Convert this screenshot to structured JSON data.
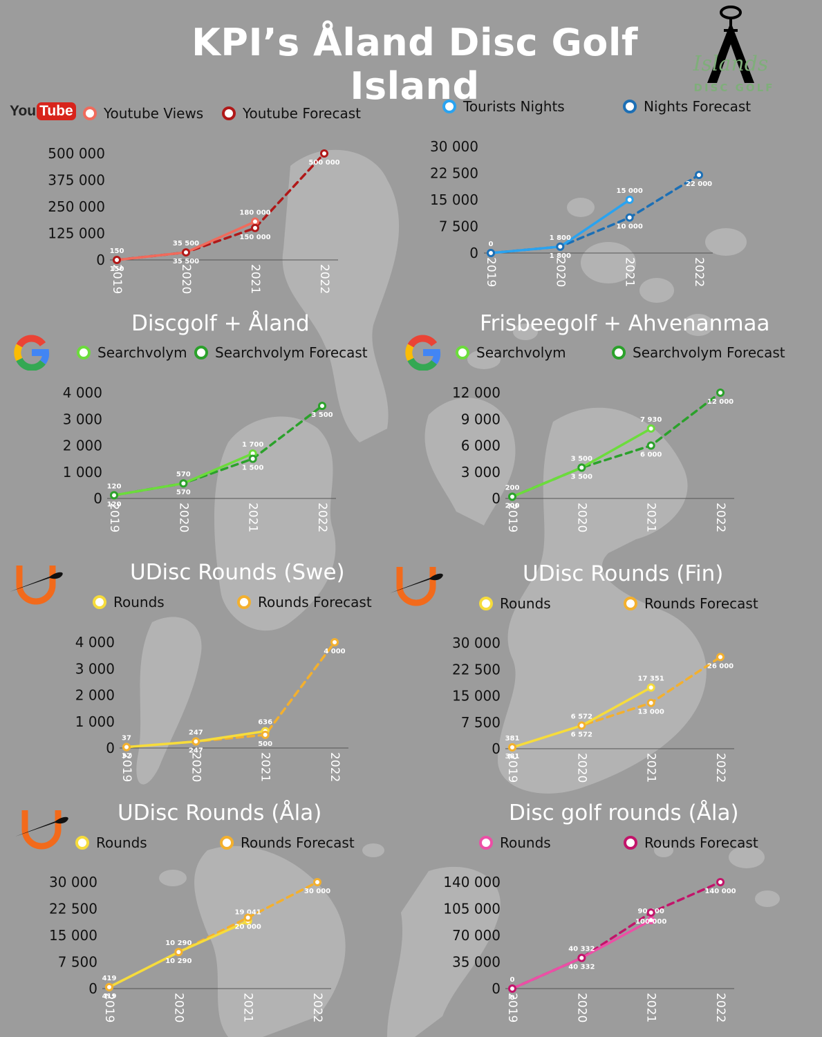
{
  "page": {
    "title": "KPI’s Åland Disc Golf Island"
  },
  "logo": {
    "line1": "Islands",
    "line2": "DISC GOLF",
    "color": "#7fae7a"
  },
  "colors": {
    "background": "#9c9c9c",
    "map": "#b3b3b3"
  },
  "icons": {
    "youtube": {
      "name": "youtube-logo-icon",
      "text_you": "You",
      "text_tube": "Tube"
    },
    "google": "google-g-icon",
    "udisc": "udisc-logo-icon"
  },
  "chart_data": [
    {
      "id": "youtube",
      "type": "line",
      "title": "",
      "x": [
        "2019",
        "2020",
        "2021",
        "2022"
      ],
      "ylim": [
        0,
        500000
      ],
      "yticks": [
        "0",
        "125 000",
        "250 000",
        "375 000",
        "500 000"
      ],
      "series": [
        {
          "name": "Youtube Views",
          "values": [
            150,
            35500,
            180000,
            null
          ],
          "labels": [
            "150",
            "35 500",
            "180 000",
            null
          ],
          "color": "#f06b5c",
          "dashed": false
        },
        {
          "name": "Youtube Forecast",
          "values": [
            150,
            35500,
            150000,
            500000
          ],
          "labels": [
            "150",
            "35 500",
            "150 000",
            "500 000"
          ],
          "color": "#b01818",
          "dashed": true
        }
      ],
      "grid": false,
      "legend": "top"
    },
    {
      "id": "nights",
      "type": "line",
      "title": "",
      "x": [
        "2019",
        "2020",
        "2021",
        "2022"
      ],
      "ylim": [
        0,
        30000
      ],
      "yticks": [
        "0",
        "7 500",
        "15 000",
        "22 500",
        "30 000"
      ],
      "series": [
        {
          "name": "Tourists Nights",
          "values": [
            0,
            1800,
            15000,
            null
          ],
          "labels": [
            "0",
            "1 800",
            "15 000",
            null
          ],
          "color": "#2aa3f0",
          "dashed": false
        },
        {
          "name": "Nights Forecast",
          "values": [
            0,
            1800,
            10000,
            22000
          ],
          "labels": [
            null,
            "1 800",
            "10 000",
            "22 000"
          ],
          "color": "#1c6fb5",
          "dashed": true
        }
      ],
      "grid": false,
      "legend": "top"
    },
    {
      "id": "discgolf-aland",
      "type": "line",
      "title": "Discgolf +  Åland",
      "x": [
        "2019",
        "2020",
        "2021",
        "2022"
      ],
      "ylim": [
        0,
        4000
      ],
      "yticks": [
        "0",
        "1 000",
        "2 000",
        "3 000",
        "4 000"
      ],
      "series": [
        {
          "name": "Searchvolym",
          "values": [
            120,
            570,
            1700,
            null
          ],
          "labels": [
            "120",
            "570",
            "1 700",
            null
          ],
          "color": "#6cdc3c",
          "dashed": false
        },
        {
          "name": "Searchvolym Forecast",
          "values": [
            120,
            570,
            1500,
            3500
          ],
          "labels": [
            "120",
            "570",
            "1 500",
            "3 500"
          ],
          "color": "#2ba12b",
          "dashed": true
        }
      ],
      "grid": false,
      "legend": "top"
    },
    {
      "id": "frisbeegolf-ahvenanmaa",
      "type": "line",
      "title": "Frisbeegolf + Ahvenanmaa",
      "x": [
        "2019",
        "2020",
        "2021",
        "2022"
      ],
      "ylim": [
        0,
        12000
      ],
      "yticks": [
        "0",
        "3 000",
        "6 000",
        "9 000",
        "12 000"
      ],
      "series": [
        {
          "name": "Searchvolym",
          "values": [
            200,
            3500,
            7930,
            null
          ],
          "labels": [
            "200",
            "3 500",
            "7 930",
            null
          ],
          "color": "#6cdc3c",
          "dashed": false
        },
        {
          "name": "Searchvolym Forecast",
          "values": [
            200,
            3500,
            6000,
            12000
          ],
          "labels": [
            "200",
            "3 500",
            "6 000",
            "12 000"
          ],
          "color": "#2ba12b",
          "dashed": true
        }
      ],
      "grid": false,
      "legend": "top"
    },
    {
      "id": "udisc-swe",
      "type": "line",
      "title": "UDisc Rounds (Swe)",
      "x": [
        "2019",
        "2020",
        "2021",
        "2022"
      ],
      "ylim": [
        0,
        4000
      ],
      "yticks": [
        "0",
        "1 000",
        "2 000",
        "3 000",
        "4 000"
      ],
      "series": [
        {
          "name": "Rounds",
          "values": [
            37,
            247,
            636,
            null
          ],
          "labels": [
            "37",
            "247",
            "636",
            null
          ],
          "color": "#f6dc3c",
          "dashed": false
        },
        {
          "name": "Rounds Forecast",
          "values": [
            37,
            247,
            500,
            4000
          ],
          "labels": [
            "37",
            "247",
            "500",
            "4 000"
          ],
          "color": "#f3b02e",
          "dashed": true
        }
      ],
      "grid": false,
      "legend": "top"
    },
    {
      "id": "udisc-fin",
      "type": "line",
      "title": "UDisc Rounds (Fin)",
      "x": [
        "2019",
        "2020",
        "2021",
        "2022"
      ],
      "ylim": [
        0,
        30000
      ],
      "yticks": [
        "0",
        "7 500",
        "15 000",
        "22 500",
        "30 000"
      ],
      "series": [
        {
          "name": "Rounds",
          "values": [
            381,
            6572,
            17351,
            null
          ],
          "labels": [
            "381",
            "6 572",
            "17 351",
            null
          ],
          "color": "#f6dc3c",
          "dashed": false
        },
        {
          "name": "Rounds Forecast",
          "values": [
            381,
            6572,
            13000,
            26000
          ],
          "labels": [
            "381",
            "6 572",
            "13 000",
            "26 000"
          ],
          "color": "#f3b02e",
          "dashed": true
        }
      ],
      "grid": false,
      "legend": "top"
    },
    {
      "id": "udisc-ala",
      "type": "line",
      "title": "UDisc Rounds (Åla)",
      "x": [
        "2019",
        "2020",
        "2021",
        "2022"
      ],
      "ylim": [
        0,
        30000
      ],
      "yticks": [
        "0",
        "7 500",
        "15 000",
        "22 500",
        "30 000"
      ],
      "series": [
        {
          "name": "Rounds",
          "values": [
            419,
            10290,
            19041,
            null
          ],
          "labels": [
            "419",
            "10 290",
            "19 041",
            null
          ],
          "color": "#f6dc3c",
          "dashed": false
        },
        {
          "name": "Rounds Forecast",
          "values": [
            419,
            10290,
            20000,
            30000
          ],
          "labels": [
            "419",
            "10 290",
            "20 000",
            "30 000"
          ],
          "color": "#f3b02e",
          "dashed": true
        }
      ],
      "grid": false,
      "legend": "top"
    },
    {
      "id": "discgolf-ala",
      "type": "line",
      "title": "Disc golf rounds (Åla)",
      "x": [
        "2019",
        "2020",
        "2021",
        "2022"
      ],
      "ylim": [
        0,
        140000
      ],
      "yticks": [
        "0",
        "35 000",
        "70 000",
        "105 000",
        "140 000"
      ],
      "series": [
        {
          "name": "Rounds",
          "values": [
            0,
            40332,
            90000,
            null
          ],
          "labels": [
            "0",
            "40 332",
            "90 000",
            null
          ],
          "color": "#ec4fa6",
          "dashed": false
        },
        {
          "name": "Rounds Forecast",
          "values": [
            0,
            40332,
            100000,
            140000
          ],
          "labels": [
            "0",
            "40 332",
            "100 000",
            "140 000"
          ],
          "color": "#c2146a",
          "dashed": true
        }
      ],
      "grid": false,
      "legend": "top"
    }
  ]
}
